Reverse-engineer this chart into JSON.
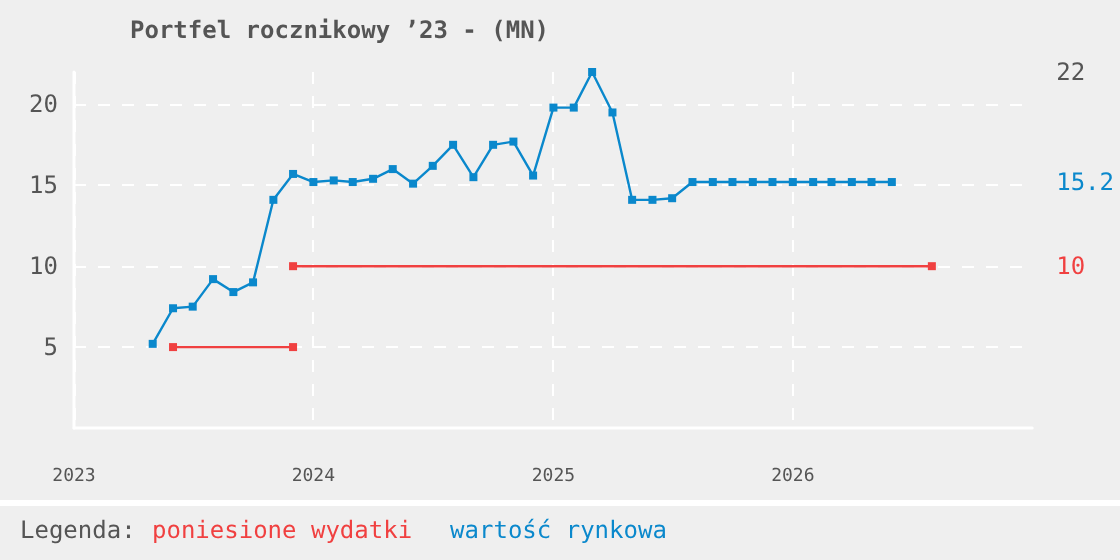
{
  "chart_data": {
    "type": "line",
    "title": "Portfel rocznikowy ’23 - (MN)",
    "legend_title": "Legenda:",
    "legend": "bottom",
    "grid": true,
    "marker": "square",
    "line_style": "solid",
    "xlim": [
      "2023-01",
      "2027-01"
    ],
    "xticks": [
      "2023",
      "2024",
      "2025",
      "2026"
    ],
    "ylim": [
      0,
      22
    ],
    "yticks": [
      5,
      10,
      15,
      20
    ],
    "y2lim": [
      0,
      22
    ],
    "y2ticks": [
      22,
      15.2,
      10
    ],
    "series": [
      {
        "name": "poniesione wydatki",
        "color": "#f04040",
        "x": [
          "2023-06",
          "2023-12",
          null,
          "2023-12",
          "2026-08"
        ],
        "values": [
          5,
          5,
          null,
          10,
          10
        ]
      },
      {
        "name": "wartość rynkowa",
        "color": "#0a88cc",
        "x": [
          "2023-05",
          "2023-06",
          "2023-07",
          "2023-08",
          "2023-09",
          "2023-10",
          "2023-11",
          "2023-12",
          "2024-01",
          "2024-02",
          "2024-03",
          "2024-04",
          "2024-05",
          "2024-06",
          "2024-07",
          "2024-08",
          "2024-09",
          "2024-10",
          "2024-11",
          "2024-12",
          "2025-01",
          "2025-02",
          "2025-03",
          "2025-04",
          "2025-05",
          "2025-06",
          "2025-07",
          "2025-08",
          "2025-09",
          "2025-10",
          "2025-11",
          "2025-12",
          "2026-01",
          "2026-02",
          "2026-03",
          "2026-04",
          "2026-05",
          "2026-06"
        ],
        "values": [
          5.2,
          7.4,
          7.5,
          9.2,
          8.4,
          9.0,
          14.1,
          15.7,
          15.2,
          15.3,
          15.2,
          15.4,
          16.0,
          15.1,
          16.2,
          17.5,
          15.5,
          17.5,
          17.7,
          15.6,
          19.8,
          19.8,
          22.0,
          19.5,
          14.1,
          14.1,
          14.2,
          15.2,
          15.2,
          15.2,
          15.2,
          15.2,
          15.2,
          15.2,
          15.2,
          15.2,
          15.2,
          15.2
        ]
      }
    ]
  }
}
